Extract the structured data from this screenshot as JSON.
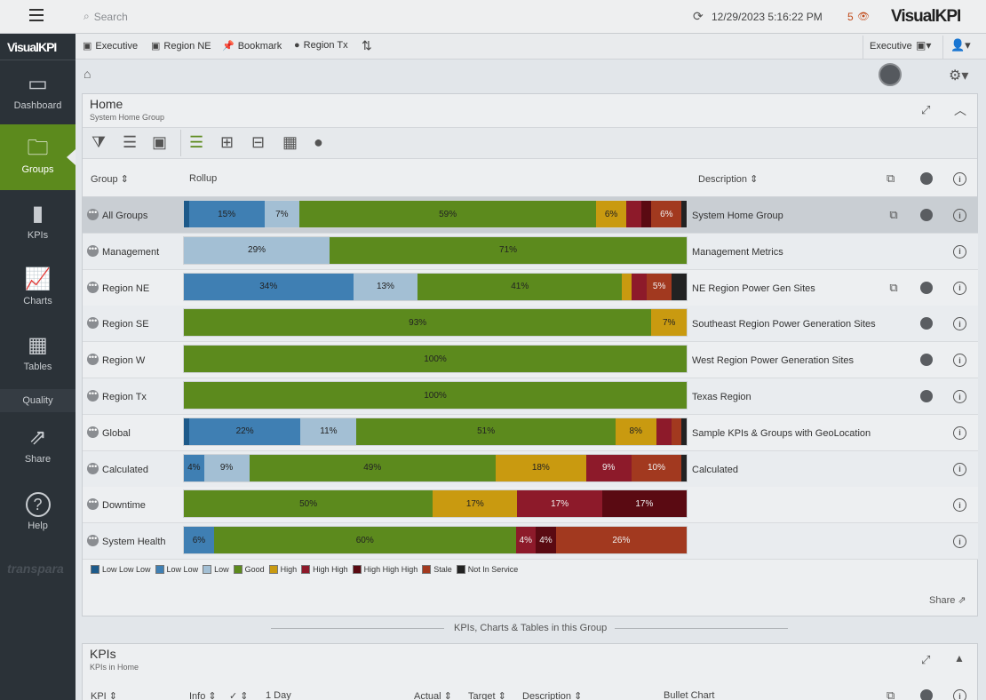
{
  "topbar": {
    "search_placeholder": "Search",
    "datetime": "12/29/2023 5:16:22 PM",
    "alert_count": "5",
    "brand": "VisualKPI"
  },
  "sidebar": {
    "brand": "VisualKPI",
    "items": [
      {
        "label": "Dashboard",
        "icon": "dashboard-icon"
      },
      {
        "label": "Groups",
        "icon": "folder-icon",
        "active": true
      },
      {
        "label": "KPIs",
        "icon": "kpi-bars-icon"
      },
      {
        "label": "Charts",
        "icon": "chart-icon"
      },
      {
        "label": "Tables",
        "icon": "table-icon"
      },
      {
        "label": "Quality",
        "icon": ""
      },
      {
        "label": "Share",
        "icon": "share-icon"
      },
      {
        "label": "Help",
        "icon": "help-icon"
      }
    ],
    "footer_logo": "transpara"
  },
  "favorites": {
    "items": [
      {
        "label": "Executive",
        "icon": "dashboard-icon"
      },
      {
        "label": "Region NE",
        "icon": "dashboard-icon"
      },
      {
        "label": "Bookmark",
        "icon": "pin-icon"
      },
      {
        "label": "Region Tx",
        "icon": "globe-icon"
      }
    ],
    "profile": "Executive"
  },
  "home_panel": {
    "title": "Home",
    "subtitle": "System Home Group"
  },
  "table": {
    "headers": {
      "group": "Group",
      "rollup": "Rollup",
      "description": "Description"
    },
    "rows": [
      {
        "name": "All Groups",
        "desc": "System Home Group",
        "highlight": true,
        "launch": true,
        "globe": true,
        "segs": [
          [
            "LLL",
            1,
            ""
          ],
          [
            "LL",
            15,
            "15%"
          ],
          [
            "L",
            7,
            "7%"
          ],
          [
            "G",
            59,
            "59%"
          ],
          [
            "H",
            6,
            "6%"
          ],
          [
            "HH",
            3,
            ""
          ],
          [
            "HHH",
            2,
            ""
          ],
          [
            "S",
            6,
            "6%"
          ],
          [
            "NIS",
            1,
            ""
          ]
        ]
      },
      {
        "name": "Management",
        "desc": "Management Metrics",
        "segs": [
          [
            "L",
            29,
            "29%"
          ],
          [
            "G",
            71,
            "71%"
          ]
        ]
      },
      {
        "name": "Region NE",
        "desc": "NE Region Power Gen Sites",
        "launch": true,
        "globe": true,
        "segs": [
          [
            "LL",
            34,
            "34%"
          ],
          [
            "L",
            13,
            "13%"
          ],
          [
            "G",
            41,
            "41%"
          ],
          [
            "H",
            2,
            ""
          ],
          [
            "HH",
            3,
            ""
          ],
          [
            "S",
            5,
            "5%"
          ],
          [
            "NIS",
            3,
            ""
          ]
        ]
      },
      {
        "name": "Region SE",
        "desc": "Southeast Region Power Generation Sites",
        "globe": true,
        "segs": [
          [
            "G",
            93,
            "93%"
          ],
          [
            "H",
            7,
            "7%"
          ]
        ]
      },
      {
        "name": "Region W",
        "desc": "West Region Power Generation Sites",
        "globe": true,
        "segs": [
          [
            "G",
            100,
            "100%"
          ]
        ]
      },
      {
        "name": "Region Tx",
        "desc": "Texas Region",
        "globe": true,
        "segs": [
          [
            "G",
            100,
            "100%"
          ]
        ]
      },
      {
        "name": "Global",
        "desc": "Sample KPIs & Groups with GeoLocation",
        "segs": [
          [
            "LLL",
            1,
            ""
          ],
          [
            "LL",
            22,
            "22%"
          ],
          [
            "L",
            11,
            "11%"
          ],
          [
            "G",
            51,
            "51%"
          ],
          [
            "H",
            8,
            "8%"
          ],
          [
            "HH",
            3,
            ""
          ],
          [
            "S",
            2,
            ""
          ],
          [
            "NIS",
            1,
            ""
          ]
        ]
      },
      {
        "name": "Calculated",
        "desc": "Calculated",
        "segs": [
          [
            "LL",
            4,
            "4%"
          ],
          [
            "L",
            9,
            "9%"
          ],
          [
            "G",
            49,
            "49%"
          ],
          [
            "H",
            18,
            "18%"
          ],
          [
            "HH",
            9,
            "9%"
          ],
          [
            "S",
            10,
            "10%"
          ],
          [
            "NIS",
            1,
            ""
          ]
        ]
      },
      {
        "name": "Downtime",
        "desc": "",
        "segs": [
          [
            "G",
            50,
            "50%"
          ],
          [
            "H",
            17,
            "17%"
          ],
          [
            "HH",
            17,
            "17%"
          ],
          [
            "HHH",
            17,
            "17%"
          ]
        ]
      },
      {
        "name": "System Health",
        "desc": "",
        "segs": [
          [
            "LL",
            6,
            "6%"
          ],
          [
            "G",
            60,
            "60%"
          ],
          [
            "HH",
            4,
            "4%"
          ],
          [
            "HHH",
            4,
            "4%"
          ],
          [
            "S",
            26,
            "26%"
          ]
        ]
      }
    ]
  },
  "legend": [
    {
      "key": "LLL",
      "label": "Low Low Low"
    },
    {
      "key": "LL",
      "label": "Low Low"
    },
    {
      "key": "L",
      "label": "Low"
    },
    {
      "key": "G",
      "label": "Good"
    },
    {
      "key": "H",
      "label": "High"
    },
    {
      "key": "HH",
      "label": "High High"
    },
    {
      "key": "HHH",
      "label": "High High High"
    },
    {
      "key": "S",
      "label": "Stale"
    },
    {
      "key": "NIS",
      "label": "Not In Service"
    }
  ],
  "colors": {
    "LLL": "#1d5a8a",
    "LL": "#3f7fb3",
    "L": "#a3bfd4",
    "G": "#5c8a1d",
    "H": "#c99a10",
    "HH": "#8d1a2a",
    "HHH": "#5a0a12",
    "S": "#a2391f",
    "NIS": "#222222",
    "accent": "#5c8a1d"
  },
  "share_label": "Share",
  "divider_label": "KPIs, Charts & Tables in this Group",
  "kpis_panel": {
    "title": "KPIs",
    "subtitle": "KPIs in Home",
    "headers": {
      "kpi": "KPI",
      "info": "Info",
      "check": "✓",
      "period": "1 Day",
      "actual": "Actual",
      "target": "Target",
      "description": "Description",
      "bullet": "Bullet Chart"
    }
  }
}
